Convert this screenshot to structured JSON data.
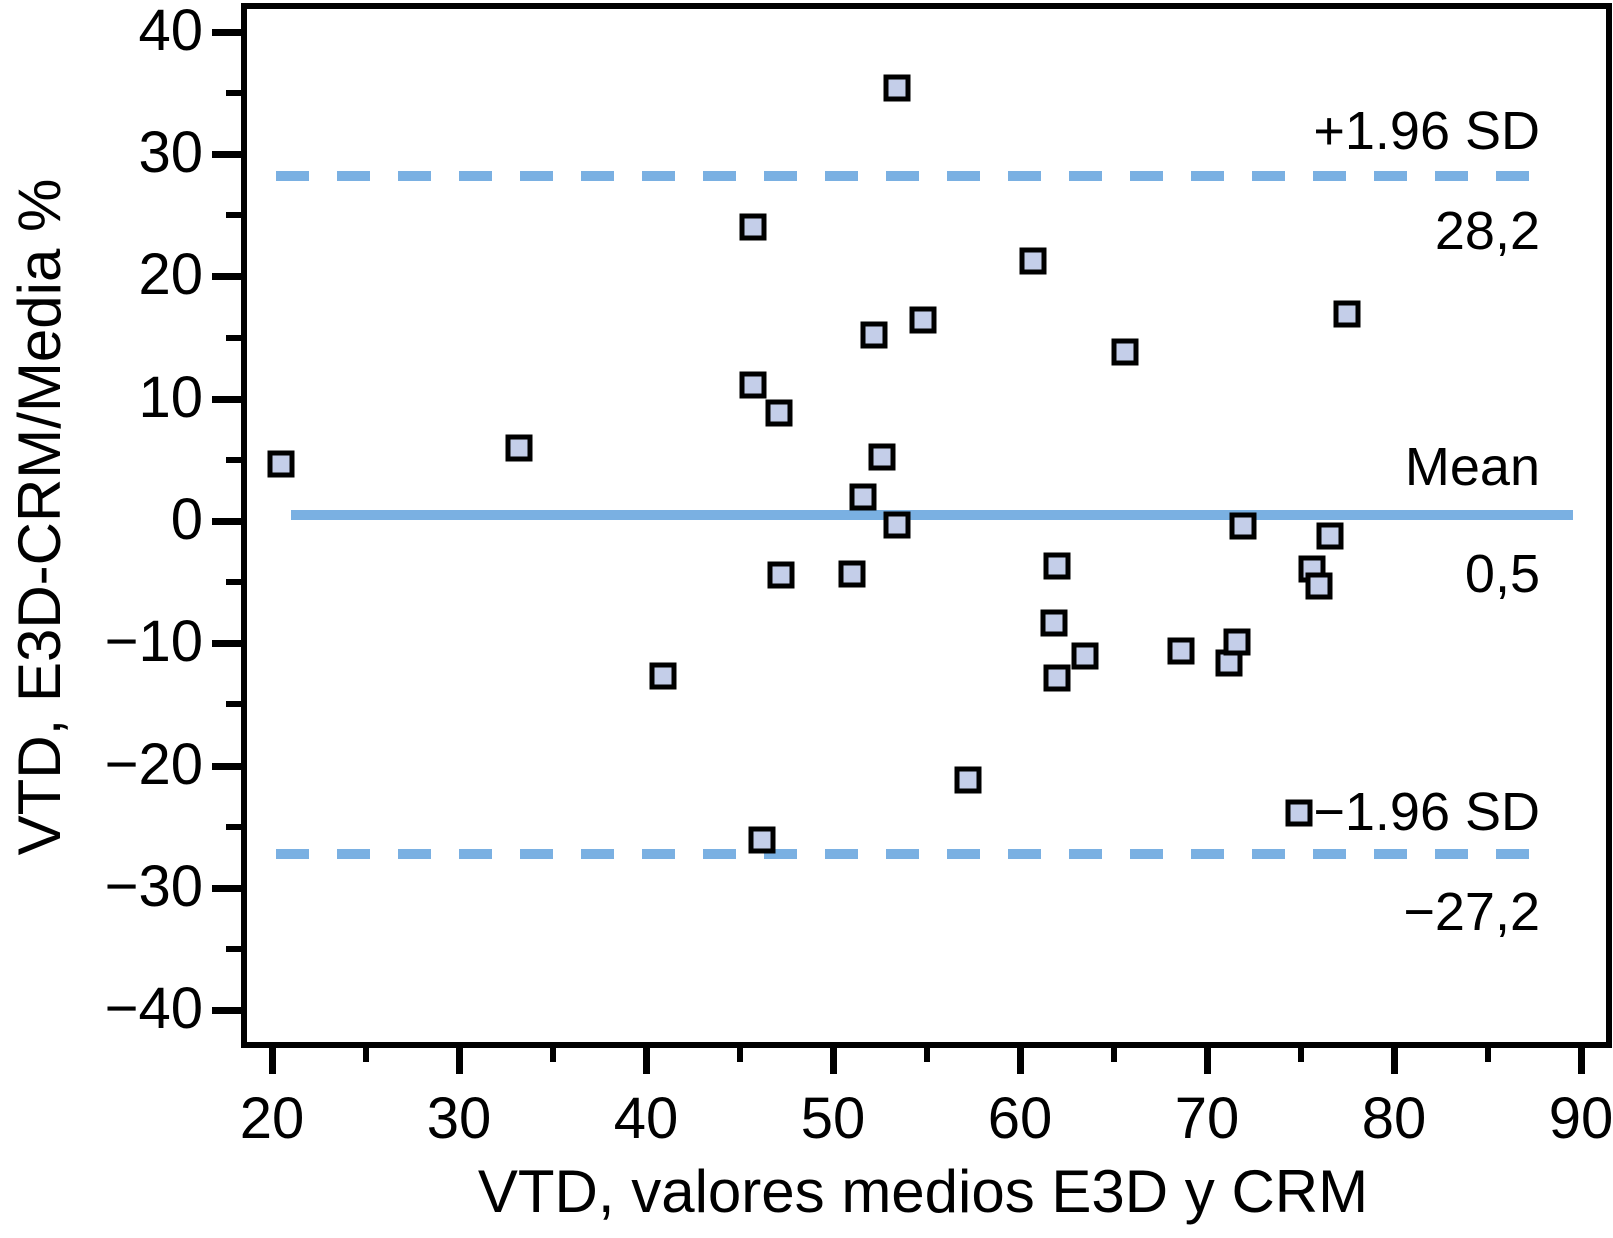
{
  "chart_data": {
    "type": "scatter",
    "title": "",
    "xlabel": "VTD, valores medios E3D y CRM",
    "ylabel": "VTD, E3D-CRM/Media %",
    "x_ticks": [
      20,
      30,
      40,
      50,
      60,
      70,
      80,
      90
    ],
    "x_tick_labels": [
      "20",
      "30",
      "40",
      "50",
      "60",
      "70",
      "80",
      "90"
    ],
    "x_minor_ticks": [
      25,
      35,
      45,
      55,
      65,
      75,
      85
    ],
    "y_ticks": [
      40,
      30,
      20,
      10,
      0,
      -10,
      -20,
      -30,
      -40
    ],
    "y_tick_labels": [
      "40",
      "30",
      "20",
      "10",
      "0",
      "−10",
      "−20",
      "−30",
      "−40"
    ],
    "y_minor_ticks": [
      35,
      25,
      15,
      5,
      -5,
      -15,
      -25,
      -35
    ],
    "xlim": [
      18.5,
      91.5
    ],
    "ylim": [
      -42.7,
      42.3
    ],
    "grid": false,
    "legend": "none",
    "marker_shape": "square",
    "points": [
      [
        20.5,
        4.7
      ],
      [
        33.2,
        6.0
      ],
      [
        40.9,
        -12.7
      ],
      [
        45.7,
        24.0
      ],
      [
        45.7,
        11.1
      ],
      [
        46.2,
        -26.1
      ],
      [
        47.1,
        8.8
      ],
      [
        47.2,
        -4.4
      ],
      [
        51.0,
        -4.3
      ],
      [
        51.6,
        2.0
      ],
      [
        52.2,
        15.2
      ],
      [
        52.6,
        5.2
      ],
      [
        53.4,
        35.4
      ],
      [
        53.4,
        -0.3
      ],
      [
        54.8,
        16.4
      ],
      [
        57.2,
        -21.2
      ],
      [
        60.7,
        21.3
      ],
      [
        61.8,
        -8.3
      ],
      [
        62.0,
        -3.7
      ],
      [
        62.0,
        -12.8
      ],
      [
        63.5,
        -11.0
      ],
      [
        65.6,
        13.8
      ],
      [
        68.6,
        -10.6
      ],
      [
        71.2,
        -11.6
      ],
      [
        71.6,
        -9.9
      ],
      [
        71.9,
        -0.4
      ],
      [
        74.9,
        -23.9
      ],
      [
        75.6,
        -3.9
      ],
      [
        76.0,
        -5.3
      ],
      [
        76.6,
        -1.2
      ],
      [
        77.5,
        16.9
      ]
    ],
    "mean_line": {
      "label": "Mean",
      "value": 0.5,
      "value_label": "0,5",
      "style": "solid"
    },
    "upper_loa_line": {
      "label": "+1.96 SD",
      "value": 28.2,
      "value_label": "28,2",
      "style": "dashed"
    },
    "lower_loa_line": {
      "label": "−1.96 SD",
      "value": -27.2,
      "value_label": "−27,2",
      "style": "dashed"
    },
    "colors": {
      "line_blue": "#7ab0e2",
      "marker_fill": "#c4cee9",
      "marker_border": "#000000",
      "axis": "#000000",
      "background": "#ffffff"
    }
  }
}
